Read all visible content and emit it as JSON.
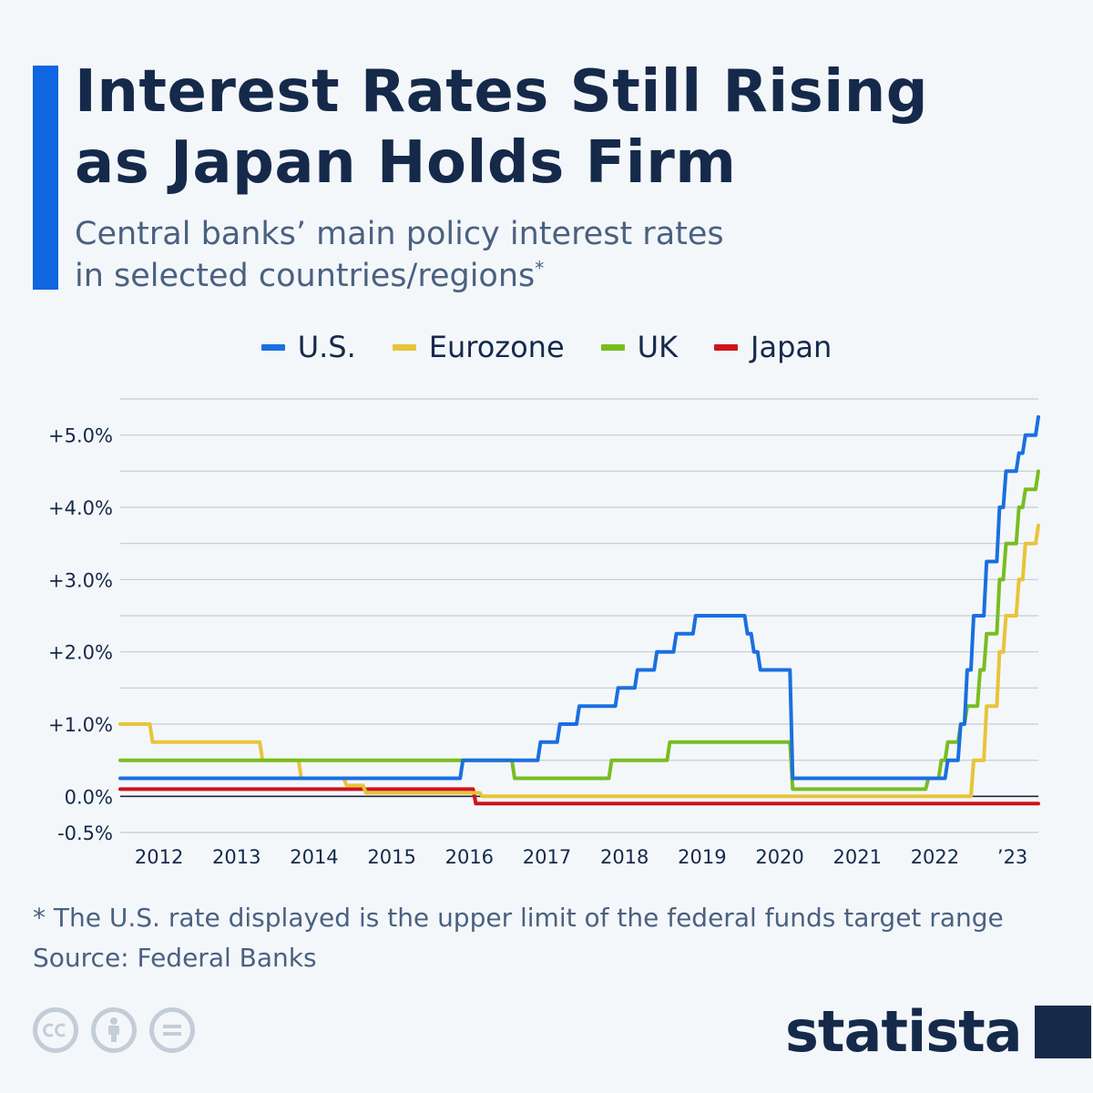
{
  "header": {
    "title_line1": "Interest Rates Still Rising",
    "title_line2": "as Japan Holds Firm",
    "subtitle_line1": "Central banks’ main policy interest rates",
    "subtitle_line2": "in selected countries/regions",
    "subtitle_mark": "*"
  },
  "colors": {
    "accent": "#0f66e0",
    "us": "#1a6fe0",
    "eurozone": "#e8c43a",
    "uk": "#78bd1f",
    "japan": "#d0121a",
    "text_dark": "#15294a",
    "text_muted": "#4a6180",
    "grid": "#c3cad3",
    "zero_line": "#1c2838"
  },
  "chart_data": {
    "type": "line",
    "step": true,
    "title": "Interest Rates Still Rising as Japan Holds Firm",
    "subtitle": "Central banks’ main policy interest rates in selected countries/regions*",
    "xlabel": "",
    "ylabel": "",
    "xlim": [
      "2011-07",
      "2023-05"
    ],
    "ylim": [
      -0.5,
      5.5
    ],
    "x_ticks": [
      {
        "label": "2012",
        "x": "2012-01"
      },
      {
        "label": "2013",
        "x": "2013-01"
      },
      {
        "label": "2014",
        "x": "2014-01"
      },
      {
        "label": "2015",
        "x": "2015-01"
      },
      {
        "label": "2016",
        "x": "2016-01"
      },
      {
        "label": "2017",
        "x": "2017-01"
      },
      {
        "label": "2018",
        "x": "2018-01"
      },
      {
        "label": "2019",
        "x": "2019-01"
      },
      {
        "label": "2020",
        "x": "2020-01"
      },
      {
        "label": "2021",
        "x": "2021-01"
      },
      {
        "label": "2022",
        "x": "2022-01"
      },
      {
        "label": "’23",
        "x": "2023-01"
      }
    ],
    "y_ticks": [
      {
        "label": "+5.0%",
        "value": 5.0
      },
      {
        "label": "+4.0%",
        "value": 4.0
      },
      {
        "label": "+3.0%",
        "value": 3.0
      },
      {
        "label": "+2.0%",
        "value": 2.0
      },
      {
        "label": "+1.0%",
        "value": 1.0
      },
      {
        "label": "0.0%",
        "value": 0.0
      },
      {
        "label": "-0.5%",
        "value": -0.5
      }
    ],
    "grid": true,
    "legend_position": "top",
    "series": [
      {
        "name": "U.S.",
        "color": "#1a6fe0",
        "points": [
          [
            "2011-07",
            0.25
          ],
          [
            "2015-12",
            0.5
          ],
          [
            "2016-12",
            0.75
          ],
          [
            "2017-03",
            1.0
          ],
          [
            "2017-06",
            1.25
          ],
          [
            "2017-12",
            1.5
          ],
          [
            "2018-03",
            1.75
          ],
          [
            "2018-06",
            2.0
          ],
          [
            "2018-09",
            2.25
          ],
          [
            "2018-12",
            2.5
          ],
          [
            "2019-08",
            2.25
          ],
          [
            "2019-09",
            2.0
          ],
          [
            "2019-10",
            1.75
          ],
          [
            "2020-03",
            0.25
          ],
          [
            "2022-03",
            0.5
          ],
          [
            "2022-05",
            1.0
          ],
          [
            "2022-06",
            1.75
          ],
          [
            "2022-07",
            2.5
          ],
          [
            "2022-09",
            3.25
          ],
          [
            "2022-11",
            4.0
          ],
          [
            "2022-12",
            4.5
          ],
          [
            "2023-02",
            4.75
          ],
          [
            "2023-03",
            5.0
          ],
          [
            "2023-05",
            5.25
          ]
        ]
      },
      {
        "name": "Eurozone",
        "color": "#e8c43a",
        "points": [
          [
            "2011-07",
            1.0
          ],
          [
            "2011-12",
            0.75
          ],
          [
            "2013-05",
            0.5
          ],
          [
            "2013-11",
            0.25
          ],
          [
            "2014-06",
            0.15
          ],
          [
            "2014-09",
            0.05
          ],
          [
            "2016-03",
            0.0
          ],
          [
            "2022-07",
            0.5
          ],
          [
            "2022-09",
            1.25
          ],
          [
            "2022-11",
            2.0
          ],
          [
            "2022-12",
            2.5
          ],
          [
            "2023-02",
            3.0
          ],
          [
            "2023-03",
            3.5
          ],
          [
            "2023-05",
            3.75
          ]
        ]
      },
      {
        "name": "UK",
        "color": "#78bd1f",
        "points": [
          [
            "2011-07",
            0.5
          ],
          [
            "2016-08",
            0.25
          ],
          [
            "2017-11",
            0.5
          ],
          [
            "2018-08",
            0.75
          ],
          [
            "2020-03",
            0.1
          ],
          [
            "2021-12",
            0.25
          ],
          [
            "2022-02",
            0.5
          ],
          [
            "2022-03",
            0.75
          ],
          [
            "2022-05",
            1.0
          ],
          [
            "2022-06",
            1.25
          ],
          [
            "2022-08",
            1.75
          ],
          [
            "2022-09",
            2.25
          ],
          [
            "2022-11",
            3.0
          ],
          [
            "2022-12",
            3.5
          ],
          [
            "2023-02",
            4.0
          ],
          [
            "2023-03",
            4.25
          ],
          [
            "2023-05",
            4.5
          ]
        ]
      },
      {
        "name": "Japan",
        "color": "#d0121a",
        "points": [
          [
            "2011-07",
            0.1
          ],
          [
            "2016-02",
            -0.1
          ],
          [
            "2023-05",
            -0.1
          ]
        ]
      }
    ]
  },
  "footer": {
    "note": "* The U.S. rate displayed is the upper limit of the federal funds target range",
    "source": "Source: Federal Banks",
    "license_icons": [
      "cc-icon",
      "attribution-icon",
      "no-derivatives-icon"
    ],
    "brand": "statista"
  }
}
